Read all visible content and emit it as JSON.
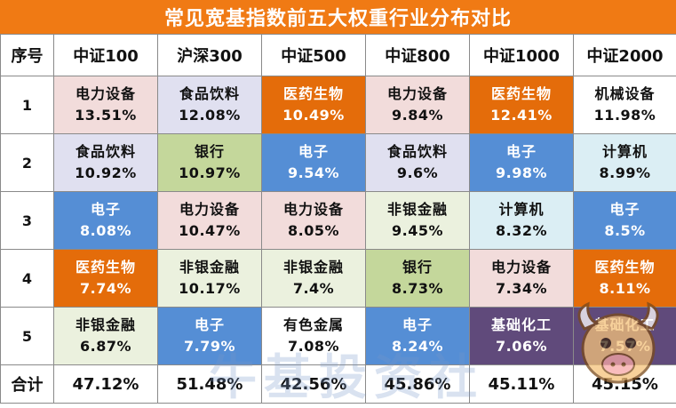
{
  "title": "常见宽基指数前五大权重行业分布对比",
  "header": [
    "序号",
    "中证100",
    "沪深300",
    "中证500",
    "中证800",
    "中证1000",
    "中证2000"
  ],
  "rows": [
    {
      "idx": "1",
      "cells": [
        {
          "name": "电力设备",
          "pct": "13.51%",
          "bg": "#f2dcdb",
          "fg": "#111111"
        },
        {
          "name": "食品饮料",
          "pct": "12.08%",
          "bg": "#e0e0f0",
          "fg": "#111111"
        },
        {
          "name": "医药生物",
          "pct": "10.49%",
          "bg": "#e46c0a",
          "fg": "#ffffff"
        },
        {
          "name": "电力设备",
          "pct": "9.84%",
          "bg": "#f2dcdb",
          "fg": "#111111"
        },
        {
          "name": "医药生物",
          "pct": "12.41%",
          "bg": "#e46c0a",
          "fg": "#ffffff"
        },
        {
          "name": "机械设备",
          "pct": "11.98%",
          "bg": "#ffffff",
          "fg": "#111111"
        }
      ]
    },
    {
      "idx": "2",
      "cells": [
        {
          "name": "食品饮料",
          "pct": "10.92%",
          "bg": "#e0e0f0",
          "fg": "#111111"
        },
        {
          "name": "银行",
          "pct": "10.97%",
          "bg": "#c4d79b",
          "fg": "#111111"
        },
        {
          "name": "电子",
          "pct": "9.54%",
          "bg": "#558ed5",
          "fg": "#ffffff"
        },
        {
          "name": "食品饮料",
          "pct": "9.6%",
          "bg": "#e0e0f0",
          "fg": "#111111"
        },
        {
          "name": "电子",
          "pct": "9.98%",
          "bg": "#558ed5",
          "fg": "#ffffff"
        },
        {
          "name": "计算机",
          "pct": "8.99%",
          "bg": "#dbeef4",
          "fg": "#111111"
        }
      ]
    },
    {
      "idx": "3",
      "cells": [
        {
          "name": "电子",
          "pct": "8.08%",
          "bg": "#558ed5",
          "fg": "#ffffff"
        },
        {
          "name": "电力设备",
          "pct": "10.47%",
          "bg": "#f2dcdb",
          "fg": "#111111"
        },
        {
          "name": "电力设备",
          "pct": "8.05%",
          "bg": "#f2dcdb",
          "fg": "#111111"
        },
        {
          "name": "非银金融",
          "pct": "9.45%",
          "bg": "#ebf1de",
          "fg": "#111111"
        },
        {
          "name": "计算机",
          "pct": "8.32%",
          "bg": "#dbeef4",
          "fg": "#111111"
        },
        {
          "name": "电子",
          "pct": "8.5%",
          "bg": "#558ed5",
          "fg": "#ffffff"
        }
      ]
    },
    {
      "idx": "4",
      "cells": [
        {
          "name": "医药生物",
          "pct": "7.74%",
          "bg": "#e46c0a",
          "fg": "#ffffff"
        },
        {
          "name": "非银金融",
          "pct": "10.17%",
          "bg": "#ebf1de",
          "fg": "#111111"
        },
        {
          "name": "非银金融",
          "pct": "7.4%",
          "bg": "#ebf1de",
          "fg": "#111111"
        },
        {
          "name": "银行",
          "pct": "8.73%",
          "bg": "#c4d79b",
          "fg": "#111111"
        },
        {
          "name": "电力设备",
          "pct": "7.34%",
          "bg": "#f2dcdb",
          "fg": "#111111"
        },
        {
          "name": "医药生物",
          "pct": "8.11%",
          "bg": "#e46c0a",
          "fg": "#ffffff"
        }
      ]
    },
    {
      "idx": "5",
      "cells": [
        {
          "name": "非银金融",
          "pct": "6.87%",
          "bg": "#ebf1de",
          "fg": "#111111"
        },
        {
          "name": "电子",
          "pct": "7.79%",
          "bg": "#558ed5",
          "fg": "#ffffff"
        },
        {
          "name": "有色金属",
          "pct": "7.08%",
          "bg": "#ffffff",
          "fg": "#111111"
        },
        {
          "name": "电子",
          "pct": "8.24%",
          "bg": "#558ed5",
          "fg": "#ffffff"
        },
        {
          "name": "基础化工",
          "pct": "7.06%",
          "bg": "#604a7b",
          "fg": "#ffffff"
        },
        {
          "name": "基础化工",
          "pct": "7.57%",
          "bg": "#604a7b",
          "fg": "#ffffff"
        }
      ]
    }
  ],
  "total": {
    "label": "合计",
    "values": [
      "47.12%",
      "51.48%",
      "42.56%",
      "45.86%",
      "45.11%",
      "45.15%"
    ]
  },
  "watermark": "牛基投资社",
  "colors": {
    "title_bg": "#f07a14",
    "border": "#8a8a8a"
  }
}
